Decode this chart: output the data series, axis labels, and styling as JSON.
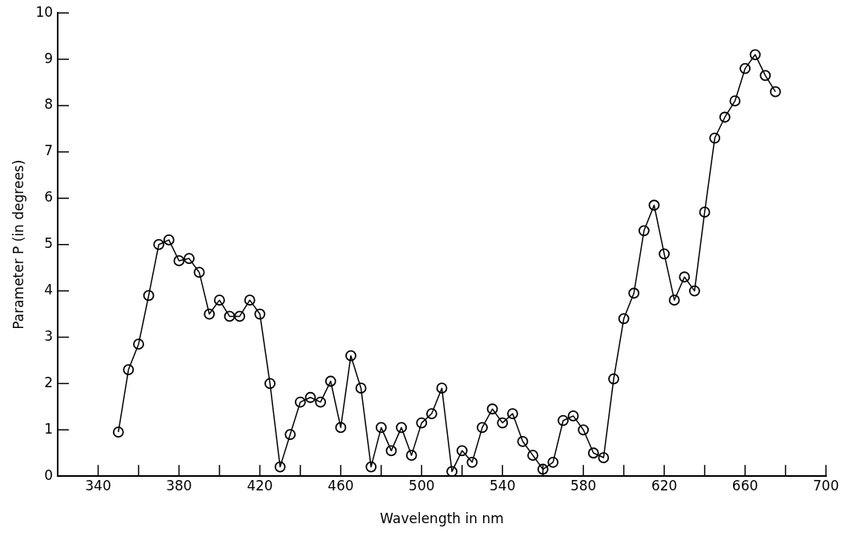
{
  "chart_data": {
    "type": "line",
    "xlabel": "Wavelength in nm",
    "ylabel": "Parameter P (in degrees)",
    "x": [
      350,
      355,
      360,
      365,
      370,
      375,
      380,
      385,
      390,
      395,
      400,
      405,
      410,
      415,
      420,
      425,
      430,
      435,
      440,
      445,
      450,
      455,
      460,
      465,
      470,
      475,
      480,
      485,
      490,
      495,
      500,
      505,
      510,
      515,
      520,
      525,
      530,
      535,
      540,
      545,
      550,
      555,
      560,
      565,
      570,
      575,
      580,
      585,
      590,
      595,
      600,
      605,
      610,
      615,
      620,
      625,
      630,
      635,
      640,
      645,
      650,
      655,
      660,
      665,
      670,
      675
    ],
    "series": [
      {
        "color": "#000000",
        "values": [
          0.95,
          2.3,
          2.85,
          3.9,
          5.0,
          5.1,
          4.65,
          4.7,
          4.4,
          3.5,
          3.8,
          3.45,
          3.45,
          3.8,
          3.5,
          2.0,
          0.2,
          0.9,
          1.6,
          1.7,
          1.6,
          2.05,
          1.05,
          2.6,
          1.9,
          0.2,
          1.05,
          0.55,
          1.05,
          0.45,
          1.15,
          1.35,
          1.9,
          0.1,
          0.55,
          0.3,
          1.05,
          1.45,
          1.15,
          1.35,
          0.75,
          0.45,
          0.15,
          0.3,
          1.2,
          1.3,
          1.0,
          0.5,
          0.4,
          2.1,
          3.4,
          3.95,
          5.3,
          5.85,
          4.8,
          3.8,
          4.3,
          4.0,
          5.7,
          7.3,
          7.75,
          8.1,
          8.8,
          9.1,
          8.65,
          8.3
        ]
      }
    ],
    "xlim": [
      320,
      700
    ],
    "xticks": [
      340,
      {
        "value": 360,
        "label": null
      },
      380,
      {
        "value": 400,
        "label": null
      },
      420,
      {
        "value": 440,
        "label": null
      },
      460,
      {
        "value": 480,
        "label": null
      },
      500,
      {
        "value": 520,
        "label": null
      },
      540,
      {
        "value": 560,
        "label": null
      },
      580,
      {
        "value": 600,
        "label": null
      },
      620,
      {
        "value": 640,
        "label": null
      },
      660,
      {
        "value": 680,
        "label": null
      },
      700
    ],
    "ylim": [
      0,
      10
    ],
    "yticks": [
      0,
      1,
      2,
      3,
      4,
      5,
      6,
      7,
      8,
      9,
      10
    ],
    "grid": false,
    "legend": false,
    "marker": "circle",
    "line_style": "solid"
  }
}
